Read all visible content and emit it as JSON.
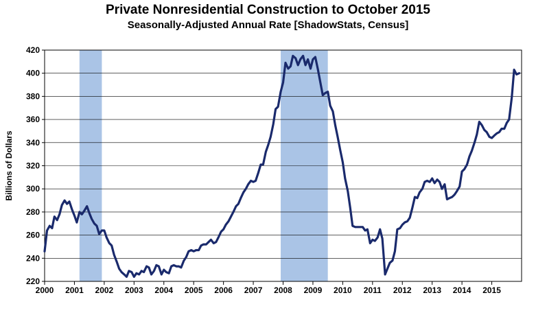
{
  "chart_data": {
    "type": "line",
    "title": "Private Nonresidential Construction to October 2015",
    "subtitle": "Seasonally-Adjusted Annual Rate [ShadowStats, Census]",
    "xlabel": "",
    "ylabel": "Billions  of Dollars",
    "xlim": [
      2000,
      2015.92
    ],
    "ylim": [
      220,
      420
    ],
    "x_ticks": [
      "2000",
      "2001",
      "2002",
      "2003",
      "2004",
      "2005",
      "2006",
      "2007",
      "2008",
      "2009",
      "2010",
      "2011",
      "2012",
      "2013",
      "2014",
      "2015"
    ],
    "y_ticks": [
      "220",
      "240",
      "260",
      "280",
      "300",
      "320",
      "340",
      "360",
      "380",
      "400",
      "420"
    ],
    "grid": true,
    "line_color": "#1a2a6c",
    "recession_color": "#aac4e6",
    "recessions": [
      [
        2001.17,
        2001.92
      ],
      [
        2007.92,
        2009.5
      ]
    ],
    "series": [
      {
        "name": "",
        "points": [
          [
            2000.0,
            246
          ],
          [
            2000.08,
            264
          ],
          [
            2000.17,
            268
          ],
          [
            2000.25,
            266
          ],
          [
            2000.33,
            276
          ],
          [
            2000.42,
            273
          ],
          [
            2000.5,
            278
          ],
          [
            2000.58,
            286
          ],
          [
            2000.67,
            290
          ],
          [
            2000.75,
            287
          ],
          [
            2000.83,
            289
          ],
          [
            2000.92,
            282
          ],
          [
            2001.0,
            277
          ],
          [
            2001.08,
            271
          ],
          [
            2001.17,
            280
          ],
          [
            2001.25,
            278
          ],
          [
            2001.33,
            281
          ],
          [
            2001.42,
            285
          ],
          [
            2001.5,
            279
          ],
          [
            2001.58,
            274
          ],
          [
            2001.67,
            270
          ],
          [
            2001.75,
            268
          ],
          [
            2001.83,
            261
          ],
          [
            2001.92,
            264
          ],
          [
            2002.0,
            264
          ],
          [
            2002.08,
            258
          ],
          [
            2002.17,
            253
          ],
          [
            2002.25,
            251
          ],
          [
            2002.33,
            243
          ],
          [
            2002.42,
            237
          ],
          [
            2002.5,
            231
          ],
          [
            2002.58,
            228
          ],
          [
            2002.67,
            226
          ],
          [
            2002.75,
            224
          ],
          [
            2002.83,
            229
          ],
          [
            2002.92,
            228
          ],
          [
            2003.0,
            224
          ],
          [
            2003.08,
            227
          ],
          [
            2003.17,
            226
          ],
          [
            2003.25,
            229
          ],
          [
            2003.33,
            228
          ],
          [
            2003.42,
            233
          ],
          [
            2003.5,
            232
          ],
          [
            2003.58,
            226
          ],
          [
            2003.67,
            229
          ],
          [
            2003.75,
            234
          ],
          [
            2003.83,
            233
          ],
          [
            2003.92,
            226
          ],
          [
            2004.0,
            230
          ],
          [
            2004.08,
            228
          ],
          [
            2004.17,
            227
          ],
          [
            2004.25,
            233
          ],
          [
            2004.33,
            234
          ],
          [
            2004.42,
            233
          ],
          [
            2004.5,
            233
          ],
          [
            2004.58,
            232
          ],
          [
            2004.67,
            238
          ],
          [
            2004.75,
            241
          ],
          [
            2004.83,
            246
          ],
          [
            2004.92,
            247
          ],
          [
            2005.0,
            246
          ],
          [
            2005.08,
            247
          ],
          [
            2005.17,
            247
          ],
          [
            2005.25,
            251
          ],
          [
            2005.33,
            252
          ],
          [
            2005.42,
            252
          ],
          [
            2005.5,
            254
          ],
          [
            2005.58,
            256
          ],
          [
            2005.67,
            253
          ],
          [
            2005.75,
            254
          ],
          [
            2005.83,
            258
          ],
          [
            2005.92,
            263
          ],
          [
            2006.0,
            265
          ],
          [
            2006.08,
            269
          ],
          [
            2006.17,
            272
          ],
          [
            2006.25,
            276
          ],
          [
            2006.33,
            280
          ],
          [
            2006.42,
            285
          ],
          [
            2006.5,
            287
          ],
          [
            2006.58,
            292
          ],
          [
            2006.67,
            297
          ],
          [
            2006.75,
            300
          ],
          [
            2006.83,
            304
          ],
          [
            2006.92,
            307
          ],
          [
            2007.0,
            306
          ],
          [
            2007.08,
            307
          ],
          [
            2007.17,
            314
          ],
          [
            2007.25,
            321
          ],
          [
            2007.33,
            321
          ],
          [
            2007.42,
            332
          ],
          [
            2007.5,
            338
          ],
          [
            2007.58,
            345
          ],
          [
            2007.67,
            356
          ],
          [
            2007.75,
            369
          ],
          [
            2007.83,
            371
          ],
          [
            2007.92,
            384
          ],
          [
            2008.0,
            392
          ],
          [
            2008.08,
            409
          ],
          [
            2008.17,
            404
          ],
          [
            2008.25,
            406
          ],
          [
            2008.33,
            415
          ],
          [
            2008.42,
            413
          ],
          [
            2008.5,
            407
          ],
          [
            2008.58,
            412
          ],
          [
            2008.67,
            415
          ],
          [
            2008.75,
            407
          ],
          [
            2008.83,
            412
          ],
          [
            2008.92,
            404
          ],
          [
            2009.0,
            412
          ],
          [
            2009.08,
            414
          ],
          [
            2009.17,
            403
          ],
          [
            2009.25,
            392
          ],
          [
            2009.33,
            381
          ],
          [
            2009.42,
            383
          ],
          [
            2009.5,
            384
          ],
          [
            2009.58,
            372
          ],
          [
            2009.67,
            367
          ],
          [
            2009.75,
            355
          ],
          [
            2009.83,
            345
          ],
          [
            2009.92,
            333
          ],
          [
            2010.0,
            323
          ],
          [
            2010.08,
            309
          ],
          [
            2010.17,
            298
          ],
          [
            2010.25,
            284
          ],
          [
            2010.33,
            268
          ],
          [
            2010.42,
            267
          ],
          [
            2010.5,
            267
          ],
          [
            2010.58,
            267
          ],
          [
            2010.67,
            267
          ],
          [
            2010.75,
            264
          ],
          [
            2010.83,
            265
          ],
          [
            2010.92,
            253
          ],
          [
            2011.0,
            256
          ],
          [
            2011.08,
            255
          ],
          [
            2011.17,
            258
          ],
          [
            2011.25,
            265
          ],
          [
            2011.33,
            257
          ],
          [
            2011.42,
            226
          ],
          [
            2011.5,
            231
          ],
          [
            2011.58,
            236
          ],
          [
            2011.67,
            238
          ],
          [
            2011.75,
            246
          ],
          [
            2011.83,
            265
          ],
          [
            2011.92,
            266
          ],
          [
            2012.0,
            269
          ],
          [
            2012.08,
            271
          ],
          [
            2012.17,
            272
          ],
          [
            2012.25,
            275
          ],
          [
            2012.33,
            283
          ],
          [
            2012.42,
            293
          ],
          [
            2012.5,
            292
          ],
          [
            2012.58,
            297
          ],
          [
            2012.67,
            300
          ],
          [
            2012.75,
            306
          ],
          [
            2012.83,
            307
          ],
          [
            2012.92,
            306
          ],
          [
            2013.0,
            309
          ],
          [
            2013.08,
            305
          ],
          [
            2013.17,
            308
          ],
          [
            2013.25,
            306
          ],
          [
            2013.33,
            300
          ],
          [
            2013.42,
            304
          ],
          [
            2013.5,
            291
          ],
          [
            2013.58,
            292
          ],
          [
            2013.67,
            293
          ],
          [
            2013.75,
            295
          ],
          [
            2013.83,
            298
          ],
          [
            2013.92,
            302
          ],
          [
            2014.0,
            315
          ],
          [
            2014.08,
            317
          ],
          [
            2014.17,
            321
          ],
          [
            2014.25,
            328
          ],
          [
            2014.33,
            333
          ],
          [
            2014.42,
            340
          ],
          [
            2014.5,
            347
          ],
          [
            2014.58,
            358
          ],
          [
            2014.67,
            355
          ],
          [
            2014.75,
            351
          ],
          [
            2014.83,
            349
          ],
          [
            2014.92,
            345
          ],
          [
            2015.0,
            344
          ],
          [
            2015.08,
            346
          ],
          [
            2015.17,
            348
          ],
          [
            2015.25,
            349
          ],
          [
            2015.33,
            352
          ],
          [
            2015.42,
            352
          ],
          [
            2015.5,
            357
          ],
          [
            2015.58,
            360
          ],
          [
            2015.67,
            379
          ],
          [
            2015.75,
            403
          ],
          [
            2015.83,
            399
          ],
          [
            2015.92,
            400
          ]
        ]
      }
    ]
  }
}
